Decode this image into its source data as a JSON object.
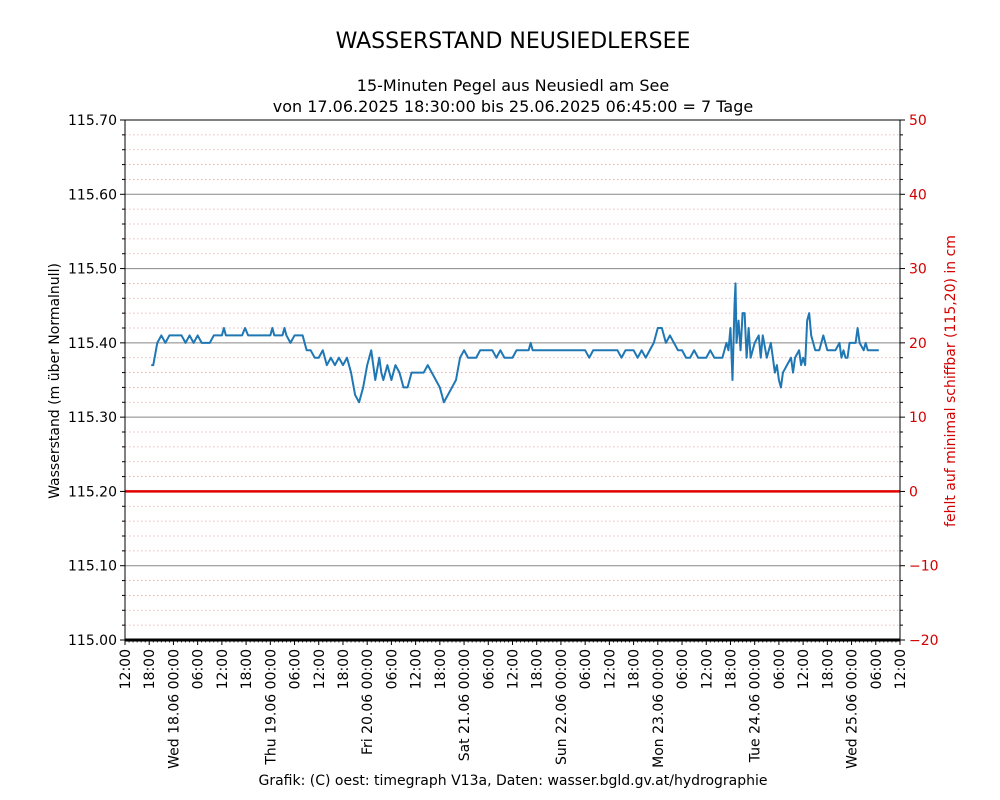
{
  "chart_data": {
    "type": "line",
    "title": "WASSERSTAND NEUSIEDLERSEE",
    "subtitle_lines": [
      "15-Minuten Pegel aus Neusiedl am See",
      "von 17.06.2025 18:30:00  bis 25.06.2025 06:45:00 =  7 Tage"
    ],
    "ylabel": "Wasserstand (m über Normalnull)",
    "y2label": "fehlt auf minimal schiffbar (115,20) in cm",
    "footer": "Grafik: (C) oest: timegraph V13a,  Daten: wasser.bgld.gv.at/hydrographie",
    "ylim": [
      115.0,
      115.7
    ],
    "y_ticks": [
      "115.00",
      "115.10",
      "115.20",
      "115.30",
      "115.40",
      "115.50",
      "115.60",
      "115.70"
    ],
    "y2lim": [
      -20,
      50
    ],
    "y2_ticks": [
      "−20",
      "−10",
      "0",
      "10",
      "20",
      "30",
      "40",
      "50"
    ],
    "xlim": [
      "2025-06-17 12:00",
      "2025-06-25 12:00"
    ],
    "x_tick_labels": [
      "12:00",
      "18:00",
      "Wed 18.06 00:00",
      "06:00",
      "12:00",
      "18:00",
      "Thu 19.06 00:00",
      "06:00",
      "12:00",
      "18:00",
      "Fri 20.06 00:00",
      "06:00",
      "12:00",
      "18:00",
      "Sat 21.06 00:00",
      "06:00",
      "12:00",
      "18:00",
      "Sun 22.06 00:00",
      "06:00",
      "12:00",
      "18:00",
      "Mon 23.06 00:00",
      "06:00",
      "12:00",
      "18:00",
      "Tue 24.06 00:00",
      "06:00",
      "12:00",
      "18:00",
      "Wed 25.06 00:00",
      "06:00",
      "12:00"
    ],
    "reference_line": {
      "value": 115.2,
      "color": "#e00000"
    },
    "grid": true,
    "series": [
      {
        "color": "#1f77b4",
        "points": [
          [
            "2025-06-17 18:30",
            115.37
          ],
          [
            "2025-06-17 19:00",
            115.37
          ],
          [
            "2025-06-17 20:00",
            115.4
          ],
          [
            "2025-06-17 21:00",
            115.41
          ],
          [
            "2025-06-17 22:00",
            115.4
          ],
          [
            "2025-06-17 23:00",
            115.41
          ],
          [
            "2025-06-18 00:00",
            115.41
          ],
          [
            "2025-06-18 02:00",
            115.41
          ],
          [
            "2025-06-18 03:00",
            115.4
          ],
          [
            "2025-06-18 04:00",
            115.41
          ],
          [
            "2025-06-18 05:00",
            115.4
          ],
          [
            "2025-06-18 06:00",
            115.41
          ],
          [
            "2025-06-18 07:00",
            115.4
          ],
          [
            "2025-06-18 09:00",
            115.4
          ],
          [
            "2025-06-18 10:00",
            115.41
          ],
          [
            "2025-06-18 12:00",
            115.41
          ],
          [
            "2025-06-18 12:30",
            115.42
          ],
          [
            "2025-06-18 13:00",
            115.41
          ],
          [
            "2025-06-18 14:00",
            115.41
          ],
          [
            "2025-06-18 17:00",
            115.41
          ],
          [
            "2025-06-18 17:45",
            115.42
          ],
          [
            "2025-06-18 18:30",
            115.41
          ],
          [
            "2025-06-18 22:00",
            115.41
          ],
          [
            "2025-06-19 00:00",
            115.41
          ],
          [
            "2025-06-19 00:30",
            115.42
          ],
          [
            "2025-06-19 01:00",
            115.41
          ],
          [
            "2025-06-19 03:00",
            115.41
          ],
          [
            "2025-06-19 03:30",
            115.42
          ],
          [
            "2025-06-19 04:00",
            115.41
          ],
          [
            "2025-06-19 05:00",
            115.4
          ],
          [
            "2025-06-19 06:00",
            115.41
          ],
          [
            "2025-06-19 08:00",
            115.41
          ],
          [
            "2025-06-19 09:00",
            115.39
          ],
          [
            "2025-06-19 10:00",
            115.39
          ],
          [
            "2025-06-19 11:00",
            115.38
          ],
          [
            "2025-06-19 12:00",
            115.38
          ],
          [
            "2025-06-19 13:00",
            115.39
          ],
          [
            "2025-06-19 13:30",
            115.38
          ],
          [
            "2025-06-19 14:00",
            115.37
          ],
          [
            "2025-06-19 15:00",
            115.38
          ],
          [
            "2025-06-19 16:00",
            115.37
          ],
          [
            "2025-06-19 17:00",
            115.38
          ],
          [
            "2025-06-19 18:00",
            115.37
          ],
          [
            "2025-06-19 19:00",
            115.38
          ],
          [
            "2025-06-19 20:00",
            115.36
          ],
          [
            "2025-06-19 21:00",
            115.33
          ],
          [
            "2025-06-19 22:00",
            115.32
          ],
          [
            "2025-06-19 23:00",
            115.34
          ],
          [
            "2025-06-20 00:00",
            115.37
          ],
          [
            "2025-06-20 01:00",
            115.39
          ],
          [
            "2025-06-20 01:30",
            115.37
          ],
          [
            "2025-06-20 02:00",
            115.35
          ],
          [
            "2025-06-20 03:00",
            115.38
          ],
          [
            "2025-06-20 03:30",
            115.36
          ],
          [
            "2025-06-20 04:00",
            115.35
          ],
          [
            "2025-06-20 05:00",
            115.37
          ],
          [
            "2025-06-20 06:00",
            115.35
          ],
          [
            "2025-06-20 07:00",
            115.37
          ],
          [
            "2025-06-20 08:00",
            115.36
          ],
          [
            "2025-06-20 09:00",
            115.34
          ],
          [
            "2025-06-20 10:00",
            115.34
          ],
          [
            "2025-06-20 11:00",
            115.36
          ],
          [
            "2025-06-20 14:00",
            115.36
          ],
          [
            "2025-06-20 15:00",
            115.37
          ],
          [
            "2025-06-20 16:00",
            115.36
          ],
          [
            "2025-06-20 17:00",
            115.35
          ],
          [
            "2025-06-20 18:00",
            115.34
          ],
          [
            "2025-06-20 19:00",
            115.32
          ],
          [
            "2025-06-20 20:00",
            115.33
          ],
          [
            "2025-06-20 21:00",
            115.34
          ],
          [
            "2025-06-20 22:00",
            115.35
          ],
          [
            "2025-06-20 23:00",
            115.38
          ],
          [
            "2025-06-21 00:00",
            115.39
          ],
          [
            "2025-06-21 01:00",
            115.38
          ],
          [
            "2025-06-21 03:00",
            115.38
          ],
          [
            "2025-06-21 04:00",
            115.39
          ],
          [
            "2025-06-21 05:00",
            115.39
          ],
          [
            "2025-06-21 07:00",
            115.39
          ],
          [
            "2025-06-21 08:00",
            115.38
          ],
          [
            "2025-06-21 09:00",
            115.39
          ],
          [
            "2025-06-21 10:00",
            115.38
          ],
          [
            "2025-06-21 12:00",
            115.38
          ],
          [
            "2025-06-21 13:00",
            115.39
          ],
          [
            "2025-06-21 16:00",
            115.39
          ],
          [
            "2025-06-21 16:30",
            115.4
          ],
          [
            "2025-06-21 17:00",
            115.39
          ],
          [
            "2025-06-22 00:00",
            115.39
          ],
          [
            "2025-06-22 06:00",
            115.39
          ],
          [
            "2025-06-22 07:00",
            115.38
          ],
          [
            "2025-06-22 08:00",
            115.39
          ],
          [
            "2025-06-22 12:00",
            115.39
          ],
          [
            "2025-06-22 14:00",
            115.39
          ],
          [
            "2025-06-22 15:00",
            115.38
          ],
          [
            "2025-06-22 16:00",
            115.39
          ],
          [
            "2025-06-22 18:00",
            115.39
          ],
          [
            "2025-06-22 19:00",
            115.38
          ],
          [
            "2025-06-22 20:00",
            115.39
          ],
          [
            "2025-06-22 21:00",
            115.38
          ],
          [
            "2025-06-22 22:00",
            115.39
          ],
          [
            "2025-06-22 23:00",
            115.4
          ],
          [
            "2025-06-23 00:00",
            115.42
          ],
          [
            "2025-06-23 01:00",
            115.42
          ],
          [
            "2025-06-23 02:00",
            115.4
          ],
          [
            "2025-06-23 03:00",
            115.41
          ],
          [
            "2025-06-23 04:00",
            115.4
          ],
          [
            "2025-06-23 05:00",
            115.39
          ],
          [
            "2025-06-23 06:00",
            115.39
          ],
          [
            "2025-06-23 07:00",
            115.38
          ],
          [
            "2025-06-23 08:00",
            115.38
          ],
          [
            "2025-06-23 09:00",
            115.39
          ],
          [
            "2025-06-23 10:00",
            115.38
          ],
          [
            "2025-06-23 12:00",
            115.38
          ],
          [
            "2025-06-23 13:00",
            115.39
          ],
          [
            "2025-06-23 14:00",
            115.38
          ],
          [
            "2025-06-23 16:00",
            115.38
          ],
          [
            "2025-06-23 17:00",
            115.4
          ],
          [
            "2025-06-23 17:30",
            115.39
          ],
          [
            "2025-06-23 18:00",
            115.42
          ],
          [
            "2025-06-23 18:30",
            115.35
          ],
          [
            "2025-06-23 19:00",
            115.45
          ],
          [
            "2025-06-23 19:15",
            115.48
          ],
          [
            "2025-06-23 19:30",
            115.4
          ],
          [
            "2025-06-23 20:00",
            115.43
          ],
          [
            "2025-06-23 20:30",
            115.39
          ],
          [
            "2025-06-23 21:00",
            115.44
          ],
          [
            "2025-06-23 21:30",
            115.44
          ],
          [
            "2025-06-23 22:00",
            115.38
          ],
          [
            "2025-06-23 22:30",
            115.42
          ],
          [
            "2025-06-23 23:00",
            115.38
          ],
          [
            "2025-06-24 00:00",
            115.4
          ],
          [
            "2025-06-24 01:00",
            115.41
          ],
          [
            "2025-06-24 01:30",
            115.38
          ],
          [
            "2025-06-24 02:00",
            115.41
          ],
          [
            "2025-06-24 03:00",
            115.38
          ],
          [
            "2025-06-24 04:00",
            115.4
          ],
          [
            "2025-06-24 05:00",
            115.36
          ],
          [
            "2025-06-24 05:30",
            115.37
          ],
          [
            "2025-06-24 06:00",
            115.35
          ],
          [
            "2025-06-24 06:30",
            115.34
          ],
          [
            "2025-06-24 07:00",
            115.36
          ],
          [
            "2025-06-24 08:00",
            115.37
          ],
          [
            "2025-06-24 09:00",
            115.38
          ],
          [
            "2025-06-24 09:30",
            115.36
          ],
          [
            "2025-06-24 10:00",
            115.38
          ],
          [
            "2025-06-24 11:00",
            115.39
          ],
          [
            "2025-06-24 11:30",
            115.37
          ],
          [
            "2025-06-24 12:00",
            115.38
          ],
          [
            "2025-06-24 12:30",
            115.37
          ],
          [
            "2025-06-24 13:00",
            115.43
          ],
          [
            "2025-06-24 13:30",
            115.44
          ],
          [
            "2025-06-24 14:00",
            115.41
          ],
          [
            "2025-06-24 14:30",
            115.4
          ],
          [
            "2025-06-24 15:00",
            115.39
          ],
          [
            "2025-06-24 16:00",
            115.39
          ],
          [
            "2025-06-24 17:00",
            115.41
          ],
          [
            "2025-06-24 17:30",
            115.4
          ],
          [
            "2025-06-24 18:00",
            115.39
          ],
          [
            "2025-06-24 20:00",
            115.39
          ],
          [
            "2025-06-24 21:00",
            115.4
          ],
          [
            "2025-06-24 21:30",
            115.38
          ],
          [
            "2025-06-24 22:00",
            115.39
          ],
          [
            "2025-06-24 22:30",
            115.38
          ],
          [
            "2025-06-24 23:00",
            115.38
          ],
          [
            "2025-06-24 23:30",
            115.4
          ],
          [
            "2025-06-25 01:00",
            115.4
          ],
          [
            "2025-06-25 01:30",
            115.42
          ],
          [
            "2025-06-25 02:00",
            115.4
          ],
          [
            "2025-06-25 03:00",
            115.39
          ],
          [
            "2025-06-25 03:30",
            115.4
          ],
          [
            "2025-06-25 04:00",
            115.39
          ],
          [
            "2025-06-25 06:45",
            115.39
          ]
        ]
      }
    ]
  }
}
